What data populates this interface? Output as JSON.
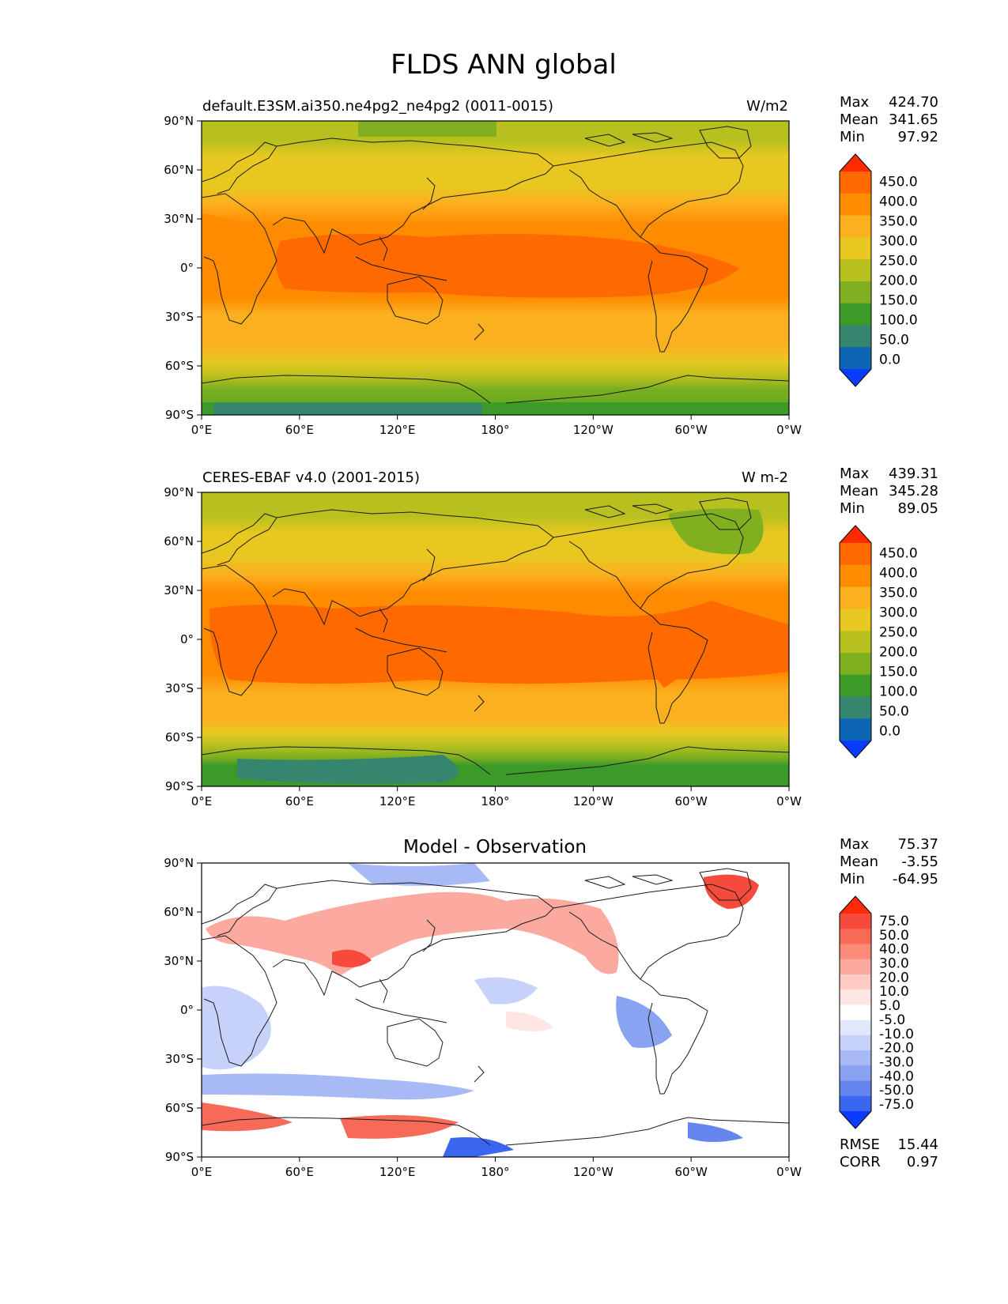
{
  "figure": {
    "title": "FLDS ANN global"
  },
  "axes": {
    "lat_ticks": [
      "90°N",
      "60°N",
      "30°N",
      "0°",
      "30°S",
      "60°S",
      "90°S"
    ],
    "lon_ticks": [
      "0°E",
      "60°E",
      "120°E",
      "180°",
      "120°W",
      "60°W",
      "0°W"
    ]
  },
  "panels": [
    {
      "left_title": "default.E3SM.ai350.ne4pg2_ne4pg2 (0011-0015)",
      "center_title": "",
      "right_title": "W/m2",
      "stats": [
        {
          "label": "Max",
          "value": "424.70"
        },
        {
          "label": "Mean",
          "value": "341.65"
        },
        {
          "label": "Min",
          "value": "97.92"
        }
      ],
      "colorbar_labels": [
        "450.0",
        "400.0",
        "350.0",
        "300.0",
        "250.0",
        "200.0",
        "150.0",
        "100.0",
        "50.0",
        "0.0"
      ],
      "colorbar_colors": [
        "#ff2a00",
        "#ff6a00",
        "#ff8c00",
        "#fbb020",
        "#e8c820",
        "#b8c020",
        "#80b020",
        "#3c9a28",
        "#36866f",
        "#0c66b4",
        "#0a3cff"
      ],
      "footer": []
    },
    {
      "left_title": "CERES-EBAF v4.0 (2001-2015)",
      "center_title": "",
      "right_title": "W m-2",
      "stats": [
        {
          "label": "Max",
          "value": "439.31"
        },
        {
          "label": "Mean",
          "value": "345.28"
        },
        {
          "label": "Min",
          "value": "89.05"
        }
      ],
      "colorbar_labels": [
        "450.0",
        "400.0",
        "350.0",
        "300.0",
        "250.0",
        "200.0",
        "150.0",
        "100.0",
        "50.0",
        "0.0"
      ],
      "colorbar_colors": [
        "#ff2a00",
        "#ff6a00",
        "#ff8c00",
        "#fbb020",
        "#e8c820",
        "#b8c020",
        "#80b020",
        "#3c9a28",
        "#36866f",
        "#0c66b4",
        "#0a3cff"
      ],
      "footer": []
    },
    {
      "left_title": "",
      "center_title": "Model - Observation",
      "right_title": "",
      "stats": [
        {
          "label": "Max",
          "value": "75.37"
        },
        {
          "label": "Mean",
          "value": "-3.55"
        },
        {
          "label": "Min",
          "value": "-64.95"
        }
      ],
      "colorbar_labels": [
        "75.0",
        "50.0",
        "40.0",
        "30.0",
        "20.0",
        "10.0",
        "5.0",
        "-5.0",
        "-10.0",
        "-20.0",
        "-30.0",
        "-40.0",
        "-50.0",
        "-75.0"
      ],
      "colorbar_colors": [
        "#ff2a0a",
        "#f54a3c",
        "#f86a58",
        "#fb8a78",
        "#fcaaa0",
        "#fdcac4",
        "#fee6e4",
        "#ffffff",
        "#e2e8fc",
        "#c6d2fa",
        "#a8baf6",
        "#8aa2f2",
        "#6486ee",
        "#3a66f0",
        "#0a3cff"
      ],
      "footer": [
        {
          "label": "RMSE",
          "value": "15.44"
        },
        {
          "label": "CORR",
          "value": "0.97"
        }
      ]
    }
  ]
}
